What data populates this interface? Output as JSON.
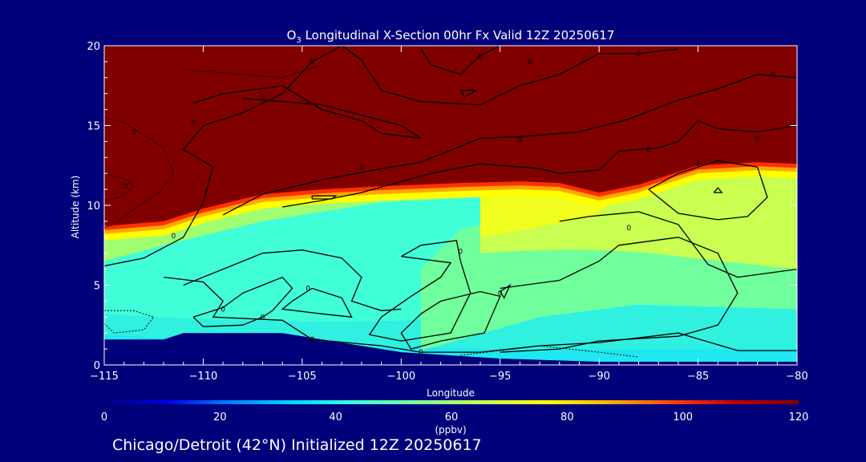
{
  "chart_data": {
    "type": "heatmap",
    "title_prefix": "O",
    "title_subscript": "3",
    "title_rest": " Longitudinal X-Section 00hr  Fx Valid 12Z 20250617",
    "xlabel": "Longitude",
    "ylabel": "Altitude (km)",
    "xlim": [
      -115,
      -80
    ],
    "ylim": [
      0,
      20
    ],
    "x_ticks": [
      "−115",
      "−110",
      "−105",
      "−100",
      "−95",
      "−90",
      "−85",
      "−80"
    ],
    "y_ticks": [
      "0",
      "5",
      "10",
      "15",
      "20"
    ],
    "x_tick_values": [
      -115,
      -110,
      -105,
      -100,
      -95,
      -90,
      -85,
      -80
    ],
    "y_tick_values": [
      0,
      5,
      10,
      15,
      20
    ],
    "colorbar": {
      "min": 0,
      "max": 120,
      "ticks": [
        "0",
        "20",
        "40",
        "60",
        "80",
        "100",
        "120"
      ],
      "tick_values": [
        0,
        20,
        40,
        60,
        80,
        100,
        120
      ],
      "unit_label": "(ppbv)",
      "colors": [
        "#00007b",
        "#0000e6",
        "#0080ff",
        "#00d8ff",
        "#40ffd8",
        "#80ff90",
        "#c8ff50",
        "#ffff00",
        "#ffb000",
        "#ff4000",
        "#c00000",
        "#800000"
      ]
    },
    "tropopause_altitude_km": [
      {
        "lon": -115,
        "alt": 8.7
      },
      {
        "lon": -112,
        "alt": 9.0
      },
      {
        "lon": -110,
        "alt": 9.8
      },
      {
        "lon": -107,
        "alt": 10.7
      },
      {
        "lon": -104,
        "alt": 11.0
      },
      {
        "lon": -101,
        "alt": 11.2
      },
      {
        "lon": -97,
        "alt": 11.4
      },
      {
        "lon": -94,
        "alt": 11.5
      },
      {
        "lon": -92,
        "alt": 11.4
      },
      {
        "lon": -90,
        "alt": 10.8
      },
      {
        "lon": -88,
        "alt": 11.3
      },
      {
        "lon": -85,
        "alt": 12.5
      },
      {
        "lon": -82,
        "alt": 12.7
      },
      {
        "lon": -80,
        "alt": 12.6
      }
    ],
    "terrain_altitude_km": [
      {
        "lon": -115,
        "alt": 1.6
      },
      {
        "lon": -112,
        "alt": 1.6
      },
      {
        "lon": -111,
        "alt": 2.0
      },
      {
        "lon": -106,
        "alt": 2.0
      },
      {
        "lon": -104,
        "alt": 1.6
      },
      {
        "lon": -100,
        "alt": 0.8
      },
      {
        "lon": -95,
        "alt": 0.4
      },
      {
        "lon": -90,
        "alt": 0.2
      },
      {
        "lon": -85,
        "alt": 0.2
      },
      {
        "lon": -80,
        "alt": 0.2
      }
    ],
    "contour_labels": [
      {
        "text": "0",
        "lon": -111.5,
        "alt": 8.1
      },
      {
        "text": "0",
        "lon": -109.0,
        "alt": 3.5
      },
      {
        "text": "0",
        "lon": -107.0,
        "alt": 3.0
      },
      {
        "text": "0",
        "lon": -104.7,
        "alt": 4.8
      },
      {
        "text": "0",
        "lon": -104.5,
        "alt": 1.6
      },
      {
        "text": "0",
        "lon": -97.0,
        "alt": 7.1
      },
      {
        "text": "0",
        "lon": -95.0,
        "alt": 4.5
      },
      {
        "text": "0",
        "lon": -99.0,
        "alt": 0.8
      },
      {
        "text": "0",
        "lon": -88.5,
        "alt": 8.6
      },
      {
        "text": "0",
        "lon": -110.5,
        "alt": 15.2
      },
      {
        "text": "0",
        "lon": -107.0,
        "alt": 16.8
      },
      {
        "text": "0",
        "lon": -104.5,
        "alt": 19.0
      },
      {
        "text": "0",
        "lon": -102.0,
        "alt": 12.4
      },
      {
        "text": "0",
        "lon": -96.0,
        "alt": 19.3
      },
      {
        "text": "0",
        "lon": -94.0,
        "alt": 14.1
      },
      {
        "text": "0",
        "lon": -93.5,
        "alt": 19.0
      },
      {
        "text": "0",
        "lon": -88.0,
        "alt": 19.5
      },
      {
        "text": "0",
        "lon": -87.5,
        "alt": 13.5
      },
      {
        "text": "0",
        "lon": -85.0,
        "alt": 12.6
      },
      {
        "text": "0",
        "lon": -82.0,
        "alt": 14.2
      },
      {
        "text": "0",
        "lon": -81.2,
        "alt": 18.2
      },
      {
        "text": "0",
        "lon": -113.9,
        "alt": 11.2
      },
      {
        "text": "0",
        "lon": -113.5,
        "alt": 14.6
      }
    ],
    "grid": false,
    "legend": "none"
  },
  "footer": "Chicago/Detroit (42°N) Initialized 12Z 20250617"
}
